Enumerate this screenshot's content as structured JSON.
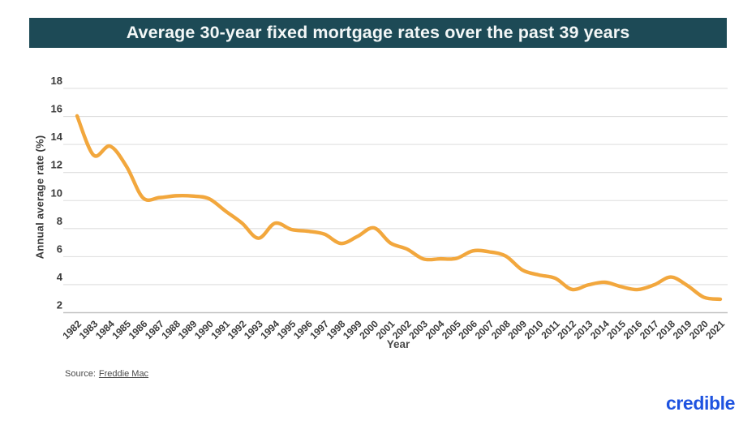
{
  "header": {
    "title": "Average 30-year fixed mortgage rates over the past 39 years",
    "bg_color": "#1d4a56",
    "text_color": "#f3f7f7"
  },
  "chart_data": {
    "type": "line",
    "x": [
      "1982",
      "1983",
      "1984",
      "1985",
      "1986",
      "1987",
      "1988",
      "1989",
      "1990",
      "1991",
      "1992",
      "1993",
      "1994",
      "1995",
      "1996",
      "1997",
      "1998",
      "1999",
      "2000",
      "2001",
      "2002",
      "2003",
      "2004",
      "2005",
      "2006",
      "2007",
      "2008",
      "2009",
      "2010",
      "2011",
      "2012",
      "2013",
      "2014",
      "2015",
      "2016",
      "2017",
      "2018",
      "2019",
      "2020",
      "2021"
    ],
    "values": [
      16.04,
      13.24,
      13.88,
      12.43,
      10.19,
      10.21,
      10.34,
      10.32,
      10.13,
      9.25,
      8.39,
      7.31,
      8.38,
      7.93,
      7.81,
      7.6,
      6.94,
      7.44,
      8.05,
      6.97,
      6.54,
      5.83,
      5.84,
      5.87,
      6.41,
      6.34,
      6.03,
      5.04,
      4.69,
      4.45,
      3.66,
      3.98,
      4.17,
      3.85,
      3.65,
      3.99,
      4.54,
      3.94,
      3.1,
      2.96
    ],
    "xlabel": "Year",
    "ylabel": "Annual average rate (%)",
    "ylim": [
      2,
      18
    ],
    "yticks": [
      2,
      4,
      6,
      8,
      10,
      12,
      14,
      16,
      18
    ],
    "grid": true,
    "legend": "none",
    "line_color": "#f2a73d",
    "grid_color": "#dddddd",
    "axis_line_color": "#c2c2c2",
    "tick_label_color": "#3b3b3b"
  },
  "footer": {
    "source_prefix": "Source:",
    "source_link": "Freddie Mac",
    "brand": "credible",
    "brand_color": "#1e53e0"
  }
}
